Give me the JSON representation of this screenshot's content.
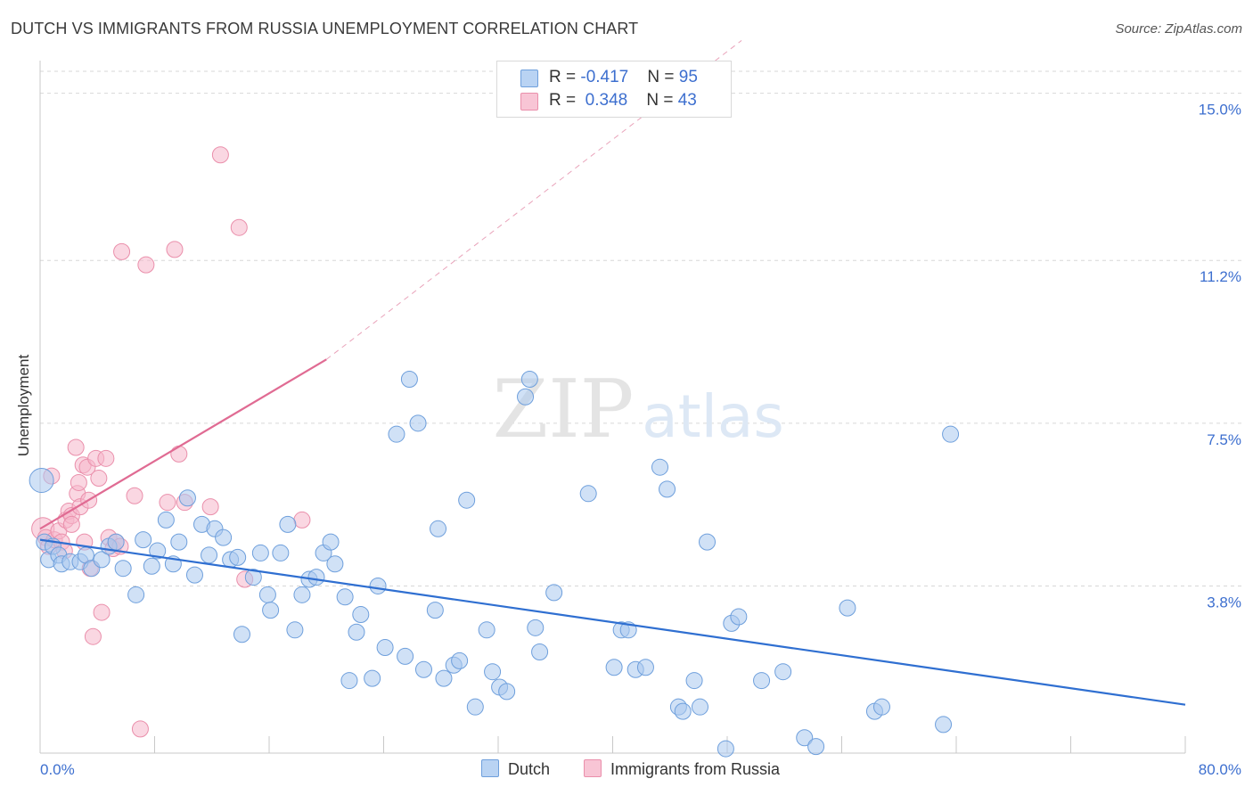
{
  "title": "DUTCH VS IMMIGRANTS FROM RUSSIA UNEMPLOYMENT CORRELATION CHART",
  "source": "Source: ZipAtlas.com",
  "watermark": {
    "zip": "ZIP",
    "atlas": "atlas"
  },
  "legend": {
    "row1": {
      "r_label": "R = ",
      "r_value": "-0.417",
      "n_label": "N = ",
      "n_value": "95"
    },
    "row2": {
      "r_label": "R = ",
      "r_value": "0.348",
      "n_label": "N = ",
      "n_value": "43"
    }
  },
  "chart_data": {
    "type": "scatter",
    "title": "DUTCH VS IMMIGRANTS FROM RUSSIA UNEMPLOYMENT CORRELATION CHART",
    "xlabel": "",
    "ylabel": "Unemployment",
    "xlim": [
      0,
      80
    ],
    "ylim": [
      0,
      15.5
    ],
    "x_tick_labels": [
      "0.0%",
      "80.0%"
    ],
    "y_ticks": [
      3.8,
      7.5,
      11.2,
      15.0
    ],
    "y_tick_labels": [
      "3.8%",
      "7.5%",
      "11.2%",
      "15.0%"
    ],
    "colors": {
      "dutch_fill": "#a9c8ef",
      "dutch_stroke": "#6e9fdc",
      "dutch_line": "#2f6fd1",
      "russia_fill": "#f6b7ca",
      "russia_stroke": "#ea8fab",
      "russia_line": "#e06b93",
      "grid": "#d7d7d7",
      "tick_text": "#3d6fcf"
    },
    "series": [
      {
        "name": "Dutch",
        "points": [
          [
            0.1,
            6.2,
            1.5
          ],
          [
            0.3,
            4.8,
            1.0
          ],
          [
            0.6,
            4.4,
            1.0
          ],
          [
            0.9,
            4.7,
            1.0
          ],
          [
            1.3,
            4.5,
            1.0
          ],
          [
            1.5,
            4.3,
            1.0
          ],
          [
            2.1,
            4.35,
            1.0
          ],
          [
            2.8,
            4.35,
            1.0
          ],
          [
            3.2,
            4.5,
            1.0
          ],
          [
            3.6,
            4.2,
            1.0
          ],
          [
            4.3,
            4.4,
            1.0
          ],
          [
            4.8,
            4.7,
            1.0
          ],
          [
            5.3,
            4.8,
            1.0
          ],
          [
            5.8,
            4.2,
            1.0
          ],
          [
            6.7,
            3.6,
            1.0
          ],
          [
            7.2,
            4.85,
            1.0
          ],
          [
            7.8,
            4.25,
            1.0
          ],
          [
            8.2,
            4.6,
            1.0
          ],
          [
            8.8,
            5.3,
            1.0
          ],
          [
            9.3,
            4.3,
            1.0
          ],
          [
            9.7,
            4.8,
            1.0
          ],
          [
            10.3,
            5.8,
            1.0
          ],
          [
            10.8,
            4.05,
            1.0
          ],
          [
            11.3,
            5.2,
            1.0
          ],
          [
            11.8,
            4.5,
            1.0
          ],
          [
            12.2,
            5.1,
            1.0
          ],
          [
            12.8,
            4.9,
            1.0
          ],
          [
            13.3,
            4.4,
            1.0
          ],
          [
            13.8,
            4.45,
            1.0
          ],
          [
            14.1,
            2.7,
            1.0
          ],
          [
            14.9,
            4.0,
            1.0
          ],
          [
            15.4,
            4.55,
            1.0
          ],
          [
            15.9,
            3.6,
            1.0
          ],
          [
            16.1,
            3.25,
            1.0
          ],
          [
            16.8,
            4.55,
            1.0
          ],
          [
            17.3,
            5.2,
            1.0
          ],
          [
            17.8,
            2.8,
            1.0
          ],
          [
            18.3,
            3.6,
            1.0
          ],
          [
            18.8,
            3.95,
            1.0
          ],
          [
            19.3,
            4.0,
            1.0
          ],
          [
            19.8,
            4.55,
            1.0
          ],
          [
            20.3,
            4.8,
            1.0
          ],
          [
            20.6,
            4.3,
            1.0
          ],
          [
            21.3,
            3.55,
            1.0
          ],
          [
            21.6,
            1.65,
            1.0
          ],
          [
            22.1,
            2.75,
            1.0
          ],
          [
            22.4,
            3.15,
            1.0
          ],
          [
            23.2,
            1.7,
            1.0
          ],
          [
            23.6,
            3.8,
            1.0
          ],
          [
            24.1,
            2.4,
            1.0
          ],
          [
            24.9,
            7.25,
            1.0
          ],
          [
            25.5,
            2.2,
            1.0
          ],
          [
            25.8,
            8.5,
            1.0
          ],
          [
            26.4,
            7.5,
            1.0
          ],
          [
            26.8,
            1.9,
            1.0
          ],
          [
            27.6,
            3.25,
            1.0
          ],
          [
            27.8,
            5.1,
            1.0
          ],
          [
            28.2,
            1.7,
            1.0
          ],
          [
            28.9,
            2.0,
            1.0
          ],
          [
            29.3,
            2.1,
            1.0
          ],
          [
            29.8,
            5.75,
            1.0
          ],
          [
            30.4,
            1.05,
            1.0
          ],
          [
            31.2,
            2.8,
            1.0
          ],
          [
            31.6,
            1.85,
            1.0
          ],
          [
            32.1,
            1.5,
            1.0
          ],
          [
            32.6,
            1.4,
            1.0
          ],
          [
            33.9,
            8.1,
            1.0
          ],
          [
            34.2,
            8.5,
            1.0
          ],
          [
            34.6,
            2.85,
            1.0
          ],
          [
            34.9,
            2.3,
            1.0
          ],
          [
            35.9,
            3.65,
            1.0
          ],
          [
            38.3,
            5.9,
            1.0
          ],
          [
            40.1,
            1.95,
            1.0
          ],
          [
            40.6,
            2.8,
            1.0
          ],
          [
            41.1,
            2.8,
            1.0
          ],
          [
            41.6,
            1.9,
            1.0
          ],
          [
            42.3,
            1.95,
            1.0
          ],
          [
            43.3,
            6.5,
            1.0
          ],
          [
            43.8,
            6.0,
            1.0
          ],
          [
            44.6,
            1.05,
            1.0
          ],
          [
            44.9,
            0.95,
            1.0
          ],
          [
            45.7,
            1.65,
            1.0
          ],
          [
            46.1,
            1.05,
            1.0
          ],
          [
            46.6,
            4.8,
            1.0
          ],
          [
            47.9,
            0.1,
            1.0
          ],
          [
            48.3,
            2.95,
            1.0
          ],
          [
            48.8,
            3.1,
            1.0
          ],
          [
            50.4,
            1.65,
            1.0
          ],
          [
            51.9,
            1.85,
            1.0
          ],
          [
            53.4,
            0.35,
            1.0
          ],
          [
            54.2,
            0.15,
            1.0
          ],
          [
            56.4,
            3.3,
            1.0
          ],
          [
            58.3,
            0.95,
            1.0
          ],
          [
            58.8,
            1.05,
            1.0
          ],
          [
            63.1,
            0.65,
            1.0
          ],
          [
            63.6,
            7.25,
            1.0
          ]
        ]
      },
      {
        "name": "Immigrants from Russia",
        "points": [
          [
            0.2,
            5.1,
            1.4
          ],
          [
            0.4,
            4.9,
            1.0
          ],
          [
            0.6,
            4.7,
            1.0
          ],
          [
            0.8,
            6.3,
            1.0
          ],
          [
            1.0,
            4.85,
            1.0
          ],
          [
            1.3,
            5.05,
            1.0
          ],
          [
            1.5,
            4.8,
            1.0
          ],
          [
            1.7,
            4.6,
            1.0
          ],
          [
            1.8,
            5.3,
            1.0
          ],
          [
            2.0,
            5.5,
            1.0
          ],
          [
            2.2,
            5.4,
            1.0
          ],
          [
            2.2,
            5.2,
            1.0
          ],
          [
            2.5,
            6.95,
            1.0
          ],
          [
            2.6,
            5.9,
            1.0
          ],
          [
            2.7,
            6.15,
            1.0
          ],
          [
            2.8,
            5.6,
            1.0
          ],
          [
            3.0,
            6.55,
            1.0
          ],
          [
            3.1,
            4.8,
            1.0
          ],
          [
            3.3,
            6.5,
            1.0
          ],
          [
            3.4,
            5.75,
            1.0
          ],
          [
            3.5,
            4.2,
            1.0
          ],
          [
            3.9,
            6.7,
            1.0
          ],
          [
            4.1,
            6.25,
            1.0
          ],
          [
            4.3,
            3.2,
            1.0
          ],
          [
            4.6,
            6.7,
            1.0
          ],
          [
            4.8,
            4.9,
            1.0
          ],
          [
            5.1,
            4.65,
            1.0
          ],
          [
            5.3,
            4.8,
            1.0
          ],
          [
            3.7,
            2.65,
            1.0
          ],
          [
            5.6,
            4.7,
            1.0
          ],
          [
            5.7,
            11.4,
            1.0
          ],
          [
            6.6,
            5.85,
            1.0
          ],
          [
            7.4,
            11.1,
            1.0
          ],
          [
            7.0,
            0.55,
            1.0
          ],
          [
            8.9,
            5.7,
            1.0
          ],
          [
            9.4,
            11.45,
            1.0
          ],
          [
            9.7,
            6.8,
            1.0
          ],
          [
            10.1,
            5.7,
            1.0
          ],
          [
            11.9,
            5.6,
            1.0
          ],
          [
            12.6,
            13.6,
            1.0
          ],
          [
            13.9,
            11.95,
            1.0
          ],
          [
            14.3,
            3.95,
            1.0
          ],
          [
            18.3,
            5.3,
            1.0
          ]
        ]
      }
    ],
    "trend_lines": [
      {
        "series": "Dutch",
        "x": [
          0,
          80
        ],
        "y": [
          4.85,
          1.1
        ]
      },
      {
        "series": "Immigrants from Russia",
        "x": [
          0,
          20
        ],
        "y": [
          5.1,
          8.95
        ],
        "dashed_extension_to": [
          49,
          16.2
        ]
      }
    ]
  },
  "bottom_legend": {
    "dutch": "Dutch",
    "russia": "Immigrants from Russia"
  }
}
